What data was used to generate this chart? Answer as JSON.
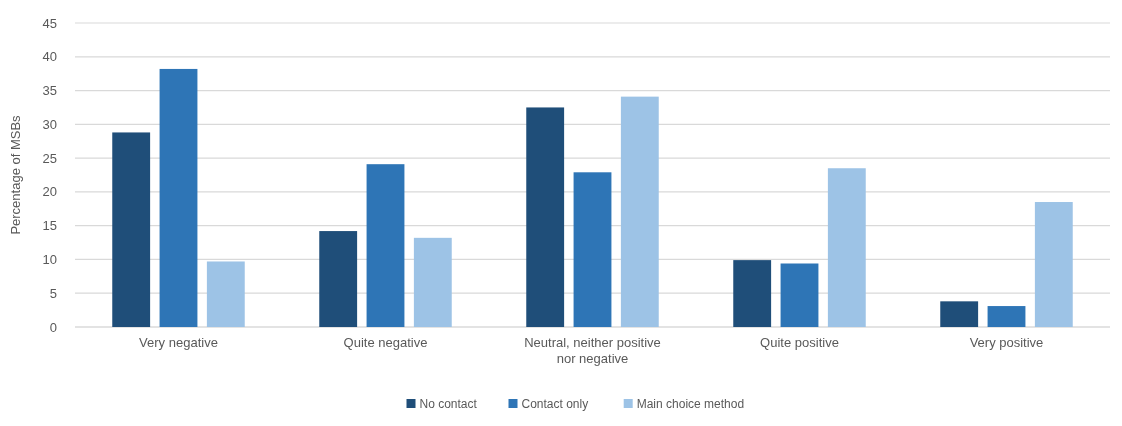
{
  "chart_data": {
    "type": "bar",
    "ylabel": "Percentage of MSBs",
    "categories": [
      "Very negative",
      "Quite negative",
      "Neutral, neither positive nor negative",
      "Quite positive",
      "Very positive"
    ],
    "series": [
      {
        "name": "No contact",
        "color": "#1f4e79",
        "values": [
          28.8,
          14.2,
          32.5,
          9.9,
          3.8
        ]
      },
      {
        "name": "Contact only",
        "color": "#2e75b6",
        "values": [
          38.2,
          24.1,
          22.9,
          9.4,
          3.1
        ]
      },
      {
        "name": "Main choice method",
        "color": "#9dc3e6",
        "values": [
          9.7,
          13.2,
          34.1,
          23.5,
          18.5
        ]
      }
    ],
    "ylim": [
      0,
      45
    ],
    "yticks": [
      0,
      5,
      10,
      15,
      20,
      25,
      30,
      35,
      40,
      45
    ],
    "grid": "y",
    "legend": "bottom"
  }
}
